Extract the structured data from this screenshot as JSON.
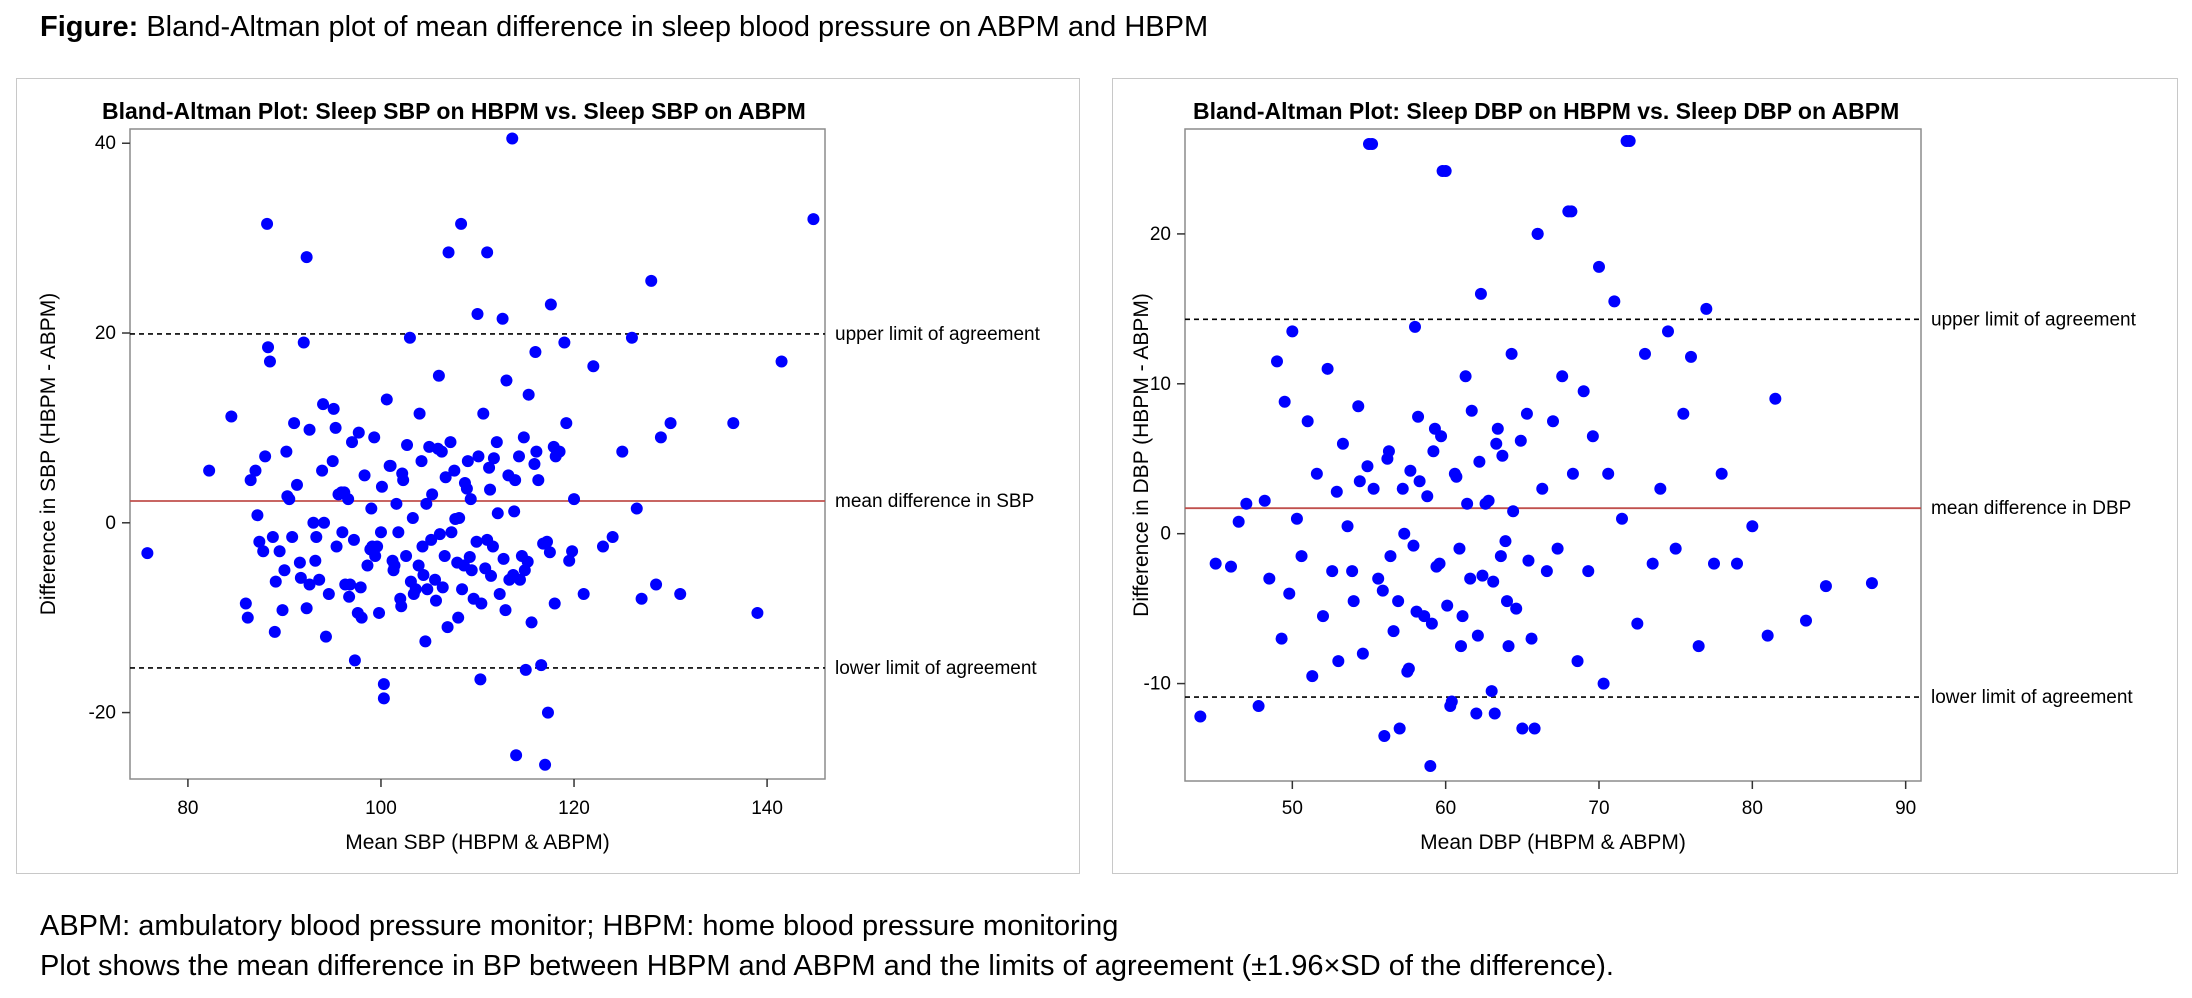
{
  "figure": {
    "heading_bold": "Figure:",
    "heading_text": " Bland-Altman plot of mean difference in sleep blood pressure on ABPM and HBPM",
    "caption_line1": "ABPM: ambulatory blood pressure monitor; HBPM: home blood pressure monitoring",
    "caption_line2": "Plot shows the mean difference in BP between HBPM and ABPM and the limits of agreement (±1.96×SD of the difference)."
  },
  "colors": {
    "points": "#0000ff",
    "mean_line": "#c0504d",
    "limit_lines": "#000000",
    "frame": "#8c8c8c",
    "panel_border": "#c8c8c8"
  },
  "chart_data": [
    {
      "type": "scatter",
      "title": "Bland-Altman Plot: Sleep SBP on HBPM vs. Sleep SBP on ABPM",
      "xlabel": "Mean SBP (HBPM & ABPM)",
      "ylabel": "Difference in SBP (HBPM - ABPM)",
      "xlim": [
        74,
        146
      ],
      "ylim": [
        -27,
        41.5
      ],
      "xticks": [
        80,
        100,
        120,
        140
      ],
      "yticks": [
        -20,
        0,
        20,
        40
      ],
      "reference_lines": [
        {
          "value": 19.9,
          "label": "upper limit of agreement",
          "style": "dashed"
        },
        {
          "value": 2.3,
          "label": "mean difference in SBP",
          "style": "solid"
        },
        {
          "value": -15.3,
          "label": "lower limit of agreement",
          "style": "dashed"
        }
      ],
      "points_x": [
        75.8,
        82.2,
        84.5,
        86.0,
        86.2,
        86.5,
        87.0,
        87.4,
        87.8,
        88.0,
        88.2,
        88.5,
        88.8,
        89.0,
        89.5,
        89.8,
        90.0,
        90.2,
        90.5,
        90.8,
        91.0,
        91.3,
        91.6,
        92.0,
        92.3,
        92.6,
        93.0,
        93.3,
        93.6,
        94.0,
        94.3,
        94.6,
        95.0,
        95.3,
        95.6,
        96.0,
        96.3,
        96.6,
        97.0,
        97.3,
        97.6,
        98.0,
        98.3,
        98.6,
        99.0,
        99.3,
        99.6,
        100.0,
        100.3,
        100.6,
        101.0,
        101.3,
        101.6,
        102.0,
        102.3,
        102.6,
        103.0,
        103.3,
        103.6,
        104.0,
        104.3,
        104.6,
        105.0,
        105.3,
        105.6,
        106.0,
        106.3,
        106.6,
        107.0,
        107.3,
        107.6,
        108.0,
        108.3,
        108.6,
        109.0,
        109.3,
        109.6,
        110.0,
        110.3,
        110.6,
        111.0,
        111.3,
        111.6,
        112.0,
        112.3,
        112.6,
        113.0,
        113.3,
        113.6,
        114.0,
        114.3,
        114.6,
        115.0,
        115.3,
        115.6,
        116.0,
        116.3,
        116.6,
        117.0,
        117.3,
        117.6,
        118.0,
        118.5,
        119.0,
        119.5,
        120.0,
        121.0,
        122.0,
        123.0,
        124.0,
        125.0,
        126.0,
        126.5,
        127.0,
        128.0,
        128.5,
        129.0,
        130.0,
        131.0,
        136.5,
        139.0,
        141.5,
        144.8,
        88.3,
        92.3,
        100.3,
        106.9,
        108.1,
        111.0,
        113.8,
        117.5,
        87.2,
        89.1,
        91.7,
        93.2,
        95.9,
        97.2,
        99.1,
        101.2,
        103.1,
        104.8,
        106.1,
        107.7,
        109.2,
        110.8,
        112.1,
        113.7,
        115.2,
        116.8,
        94.1,
        96.8,
        98.9,
        100.9,
        102.7,
        104.2,
        105.9,
        107.2,
        108.7,
        110.1,
        111.7,
        113.2,
        114.8,
        116.1,
        117.9,
        119.2,
        92.6,
        95.1,
        97.7,
        100.1,
        102.2,
        104.7,
        106.7,
        108.9,
        111.2,
        113.9,
        115.9,
        118.1,
        90.3,
        93.9,
        96.2,
        99.4,
        101.8,
        103.9,
        105.2,
        107.9,
        109.9,
        112.7,
        114.9,
        117.2,
        119.8,
        95.4,
        97.9,
        101.4,
        103.4,
        105.7,
        108.4,
        110.4,
        112.9,
        96.7,
        99.8,
        102.1,
        104.4,
        106.4,
        109.4,
        111.4,
        114.4
      ],
      "points_y": [
        -3.2,
        5.5,
        11.2,
        -8.5,
        -10.0,
        4.5,
        5.5,
        -2.0,
        -3.0,
        7.0,
        31.5,
        17.0,
        -1.5,
        -11.5,
        -3.0,
        -9.2,
        -5.0,
        7.5,
        2.5,
        -1.5,
        10.5,
        4.0,
        -4.2,
        19.0,
        -9.0,
        -6.5,
        0.0,
        -1.5,
        -6.0,
        12.5,
        -12.0,
        -7.5,
        6.5,
        10.0,
        3.0,
        -1.0,
        -6.5,
        2.5,
        8.5,
        -14.5,
        -9.5,
        -10.0,
        5.0,
        -4.5,
        1.5,
        9.0,
        -2.5,
        -1.0,
        -18.5,
        13.0,
        6.0,
        -5.0,
        2.0,
        -8.0,
        4.5,
        -3.5,
        19.5,
        0.5,
        -7.0,
        11.5,
        -2.5,
        -12.5,
        8.0,
        3.0,
        -6.0,
        15.5,
        7.5,
        -3.5,
        28.5,
        -1.0,
        5.5,
        -10.0,
        31.5,
        -4.5,
        6.5,
        2.5,
        -8.0,
        22.0,
        -16.5,
        11.5,
        28.5,
        3.5,
        -2.5,
        8.5,
        -7.5,
        21.5,
        15.0,
        -6.0,
        40.5,
        -24.5,
        7.0,
        -3.5,
        -15.5,
        13.5,
        -10.5,
        18.0,
        4.5,
        -15.0,
        -25.5,
        -20.0,
        23.0,
        -8.5,
        7.5,
        19.0,
        -4.0,
        2.5,
        -7.5,
        16.5,
        -2.5,
        -1.5,
        7.5,
        19.5,
        1.5,
        -8.0,
        25.5,
        -6.5,
        9.0,
        10.5,
        -7.5,
        10.5,
        -9.5,
        17.0,
        32.0,
        18.5,
        28.0,
        -17.0,
        -11.0,
        0.5,
        -1.8,
        1.2,
        -3.1,
        0.8,
        -6.2,
        -5.8,
        -4.0,
        3.2,
        -1.8,
        -2.5,
        -4.0,
        -6.2,
        -7.0,
        -1.2,
        0.4,
        -3.6,
        -4.8,
        1.0,
        -5.5,
        -4.1,
        -2.2,
        0.0,
        -6.5,
        -2.8,
        6.0,
        8.2,
        6.5,
        7.8,
        8.5,
        4.2,
        7.0,
        6.8,
        5.0,
        9.0,
        7.5,
        8.0,
        10.5,
        9.8,
        12.0,
        9.5,
        3.8,
        5.2,
        2.0,
        4.8,
        3.6,
        5.8,
        4.5,
        6.2,
        7.0,
        2.8,
        5.5,
        3.2,
        -3.5,
        -1.0,
        -4.5,
        -1.8,
        -4.2,
        -2.0,
        -3.8,
        -5.0,
        -2.0,
        -3.0,
        -2.5,
        -6.8,
        -4.5,
        -7.5,
        -8.2,
        -7.0,
        -8.5,
        -9.2,
        -7.8,
        -9.5,
        -8.8,
        -5.5,
        -6.8,
        -5.0,
        -5.6,
        -6.0,
        -4.9,
        -7.2,
        -6.4
      ]
    },
    {
      "type": "scatter",
      "title": "Bland-Altman Plot: Sleep DBP on HBPM vs. Sleep DBP on ABPM",
      "xlabel": "Mean DBP (HBPM & ABPM)",
      "ylabel": "Difference in DBP (HBPM - ABPM)",
      "xlim": [
        43,
        91
      ],
      "ylim": [
        -16.5,
        27
      ],
      "xticks": [
        50,
        60,
        70,
        80,
        90
      ],
      "yticks": [
        -10,
        0,
        10,
        20
      ],
      "reference_lines": [
        {
          "value": 14.3,
          "label": "upper limit of agreement",
          "style": "dashed"
        },
        {
          "value": 1.7,
          "label": "mean difference in DBP",
          "style": "solid"
        },
        {
          "value": -10.9,
          "label": "lower limit of agreement",
          "style": "dashed"
        }
      ],
      "points_x": [
        44.0,
        45.0,
        46.0,
        46.5,
        47.0,
        47.8,
        48.2,
        48.5,
        49.0,
        49.3,
        49.5,
        49.8,
        50.0,
        50.3,
        50.6,
        51.0,
        51.3,
        51.6,
        52.0,
        52.3,
        52.6,
        53.0,
        53.3,
        53.6,
        54.0,
        54.3,
        54.6,
        55.0,
        55.3,
        55.6,
        56.0,
        56.3,
        56.6,
        57.0,
        57.3,
        57.6,
        58.0,
        58.3,
        58.6,
        59.0,
        59.3,
        59.6,
        60.0,
        60.3,
        60.6,
        61.0,
        61.3,
        61.6,
        62.0,
        62.3,
        62.6,
        63.0,
        63.3,
        63.6,
        64.0,
        64.3,
        64.6,
        65.0,
        65.3,
        65.6,
        66.0,
        66.3,
        66.6,
        67.0,
        67.3,
        67.6,
        68.0,
        68.3,
        68.6,
        69.0,
        69.3,
        69.6,
        70.0,
        70.3,
        70.6,
        71.0,
        71.5,
        72.0,
        72.5,
        73.0,
        73.5,
        74.0,
        74.5,
        75.0,
        75.5,
        76.0,
        76.5,
        77.0,
        77.5,
        78.0,
        79.0,
        80.0,
        81.0,
        81.5,
        83.5,
        84.8,
        87.8,
        55.2,
        59.8,
        66.0,
        68.2,
        71.8,
        57.5,
        60.4,
        63.2,
        65.8,
        53.9,
        55.9,
        56.9,
        58.1,
        59.1,
        60.1,
        61.1,
        62.1,
        63.1,
        64.1,
        52.9,
        54.4,
        57.2,
        58.8,
        61.4,
        62.8,
        64.4,
        56.4,
        57.9,
        59.4,
        60.9,
        62.4,
        63.9,
        65.4,
        54.9,
        56.2,
        57.7,
        59.2,
        60.7,
        62.2,
        63.7,
        58.2,
        59.7,
        61.7,
        63.4,
        64.9
      ],
      "points_y": [
        -12.2,
        -2.0,
        -2.2,
        0.8,
        2.0,
        -11.5,
        2.2,
        -3.0,
        11.5,
        -7.0,
        8.8,
        -4.0,
        13.5,
        1.0,
        -1.5,
        7.5,
        -9.5,
        4.0,
        -5.5,
        11.0,
        -2.5,
        -8.5,
        6.0,
        0.5,
        -4.5,
        8.5,
        -8.0,
        26.0,
        3.0,
        -3.0,
        -13.5,
        5.5,
        -6.5,
        -13.0,
        0.0,
        -9.0,
        13.8,
        3.5,
        -5.5,
        -15.5,
        7.0,
        -2.0,
        24.2,
        -11.5,
        4.0,
        -7.5,
        10.5,
        -3.0,
        -12.0,
        16.0,
        2.0,
        -10.5,
        6.0,
        -1.5,
        -4.5,
        12.0,
        -5.0,
        -13.0,
        8.0,
        -7.0,
        20.0,
        3.0,
        -2.5,
        7.5,
        -1.0,
        10.5,
        21.5,
        4.0,
        -8.5,
        9.5,
        -2.5,
        6.5,
        17.8,
        -10.0,
        4.0,
        15.5,
        1.0,
        26.2,
        -6.0,
        12.0,
        -2.0,
        3.0,
        13.5,
        -1.0,
        8.0,
        11.8,
        -7.5,
        15.0,
        -2.0,
        4.0,
        -2.0,
        0.5,
        -6.8,
        9.0,
        -5.8,
        -3.5,
        -3.3,
        26.0,
        24.2,
        20.0,
        21.5,
        26.2,
        -9.2,
        -11.2,
        -12.0,
        -13.0,
        -2.5,
        -3.8,
        -4.5,
        -5.2,
        -6.0,
        -4.8,
        -5.5,
        -6.8,
        -3.2,
        -7.5,
        2.8,
        3.5,
        3.0,
        2.5,
        2.0,
        2.2,
        1.5,
        -1.5,
        -0.8,
        -2.2,
        -1.0,
        -2.8,
        -0.5,
        -1.8,
        4.5,
        5.0,
        4.2,
        5.5,
        3.8,
        4.8,
        5.2,
        7.8,
        6.5,
        8.2,
        7.0,
        6.2
      ]
    }
  ]
}
